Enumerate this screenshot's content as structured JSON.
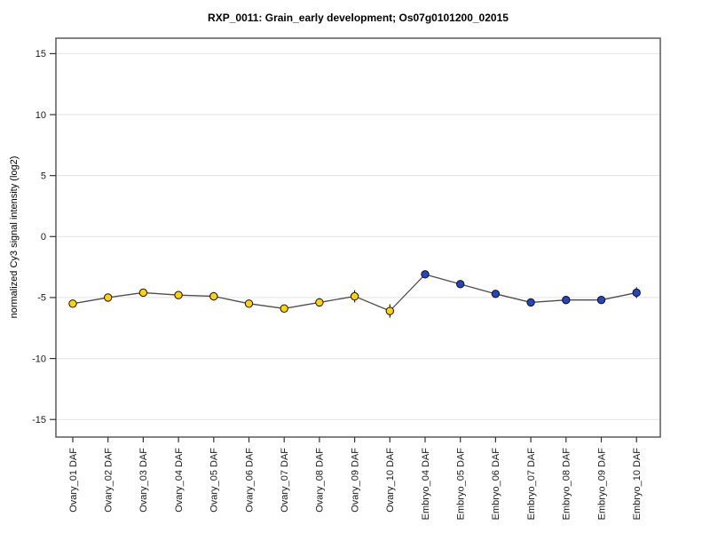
{
  "chart_data": {
    "type": "line",
    "title": "RXP_0011: Grain_early development; Os07g0101200_02015",
    "ylabel": "normalized Cy3 signal intensity (log2)",
    "xlabel": "",
    "yticks": [
      15,
      10,
      5,
      0,
      -5,
      -10,
      -15
    ],
    "ylim": [
      -16.4,
      16.3
    ],
    "grid": true,
    "legend": "none",
    "x_label_rotation": -90,
    "connected_single_line": true,
    "colors": {
      "grid_line": "#e2e2e2",
      "box_border": "#5a5a5a",
      "tick_mark": "#333333",
      "series_line": "#4d4d4d",
      "error_bar": "#111111",
      "marker_outline": "#111111",
      "background": "#ffffff"
    },
    "series_meta": [
      {
        "name": "Ovary",
        "marker_color": "#ffd300"
      },
      {
        "name": "Embryo",
        "marker_color": "#2444c4"
      }
    ],
    "points": [
      {
        "label": "Ovary_01 DAF",
        "series": "Ovary",
        "value": -5.5,
        "error": 0.15
      },
      {
        "label": "Ovary_02 DAF",
        "series": "Ovary",
        "value": -5.0,
        "error": 0.2
      },
      {
        "label": "Ovary_03 DAF",
        "series": "Ovary",
        "value": -4.6,
        "error": 0.25
      },
      {
        "label": "Ovary_04 DAF",
        "series": "Ovary",
        "value": -4.8,
        "error": 0.2
      },
      {
        "label": "Ovary_05 DAF",
        "series": "Ovary",
        "value": -4.9,
        "error": 0.35
      },
      {
        "label": "Ovary_06 DAF",
        "series": "Ovary",
        "value": -5.5,
        "error": 0.2
      },
      {
        "label": "Ovary_07 DAF",
        "series": "Ovary",
        "value": -5.9,
        "error": 0.25
      },
      {
        "label": "Ovary_08 DAF",
        "series": "Ovary",
        "value": -5.4,
        "error": 0.35
      },
      {
        "label": "Ovary_09 DAF",
        "series": "Ovary",
        "value": -4.9,
        "error": 0.5
      },
      {
        "label": "Ovary_10 DAF",
        "series": "Ovary",
        "value": -6.1,
        "error": 0.55
      },
      {
        "label": "Embryo_04 DAF",
        "series": "Embryo",
        "value": -3.1,
        "error": 0.15
      },
      {
        "label": "Embryo_05 DAF",
        "series": "Embryo",
        "value": -3.9,
        "error": 0.1
      },
      {
        "label": "Embryo_06 DAF",
        "series": "Embryo",
        "value": -4.7,
        "error": 0.15
      },
      {
        "label": "Embryo_07 DAF",
        "series": "Embryo",
        "value": -5.4,
        "error": 0.1
      },
      {
        "label": "Embryo_08 DAF",
        "series": "Embryo",
        "value": -5.2,
        "error": 0.15
      },
      {
        "label": "Embryo_09 DAF",
        "series": "Embryo",
        "value": -5.2,
        "error": 0.25
      },
      {
        "label": "Embryo_10 DAF",
        "series": "Embryo",
        "value": -4.6,
        "error": 0.45
      }
    ]
  }
}
